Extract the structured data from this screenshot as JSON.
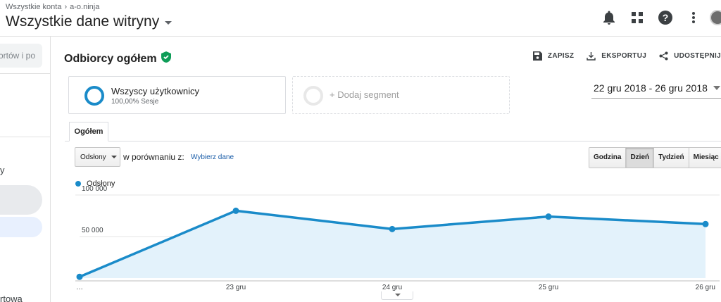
{
  "header": {
    "breadcrumb": [
      "Wszystkie konta",
      "a-o.ninja"
    ],
    "breadcrumb_sep": "›",
    "property_title": "Wszystkie dane witryny",
    "icons": [
      "bell-icon",
      "apps-grid-icon",
      "help-icon",
      "more-vert-icon",
      "avatar"
    ]
  },
  "sidebar": {
    "search_placeholder": "ortów i po",
    "label_y": "y",
    "label_towa": "rtowa"
  },
  "report": {
    "title": "Odbiorcy ogółem",
    "actions": [
      {
        "label": "ZAPISZ",
        "icon": "save-icon"
      },
      {
        "label": "EKSPORTUJ",
        "icon": "download-icon"
      },
      {
        "label": "UDOSTĘPNIJ",
        "icon": "share-icon"
      }
    ]
  },
  "segments": {
    "active": {
      "name": "Wszyscy użytkownicy",
      "sub": "100,00% Sesje"
    },
    "add_label": "+ Dodaj segment"
  },
  "date_range": "22 gru 2018 - 26 gru 2018",
  "tabs": [
    {
      "label": "Ogółem",
      "active": true
    }
  ],
  "controls": {
    "metric": "Odsłony",
    "compare_label": "w porównaniu z:",
    "compare_link": "Wybierz dane",
    "periods": [
      {
        "label": "Godzina",
        "active": false
      },
      {
        "label": "Dzień",
        "active": true
      },
      {
        "label": "Tydzień",
        "active": false
      },
      {
        "label": "Miesiąc",
        "active": false
      }
    ]
  },
  "colors": {
    "accent": "#1a8bc9",
    "area_fill": "#e3f2fb",
    "verified": "#0f9d58"
  },
  "chart_data": {
    "type": "area",
    "categories": [
      "…",
      "23 gru",
      "24 gru",
      "25 gru",
      "26 gru"
    ],
    "series": [
      {
        "name": "Odsłony",
        "values": [
          1500,
          81000,
          59000,
          74000,
          65000
        ]
      }
    ],
    "y_ticks": [
      {
        "value": 100000,
        "label": "100 000"
      },
      {
        "value": 50000,
        "label": "50 000"
      }
    ],
    "ylim": [
      0,
      100000
    ],
    "grid": true,
    "legend": "top-left"
  }
}
